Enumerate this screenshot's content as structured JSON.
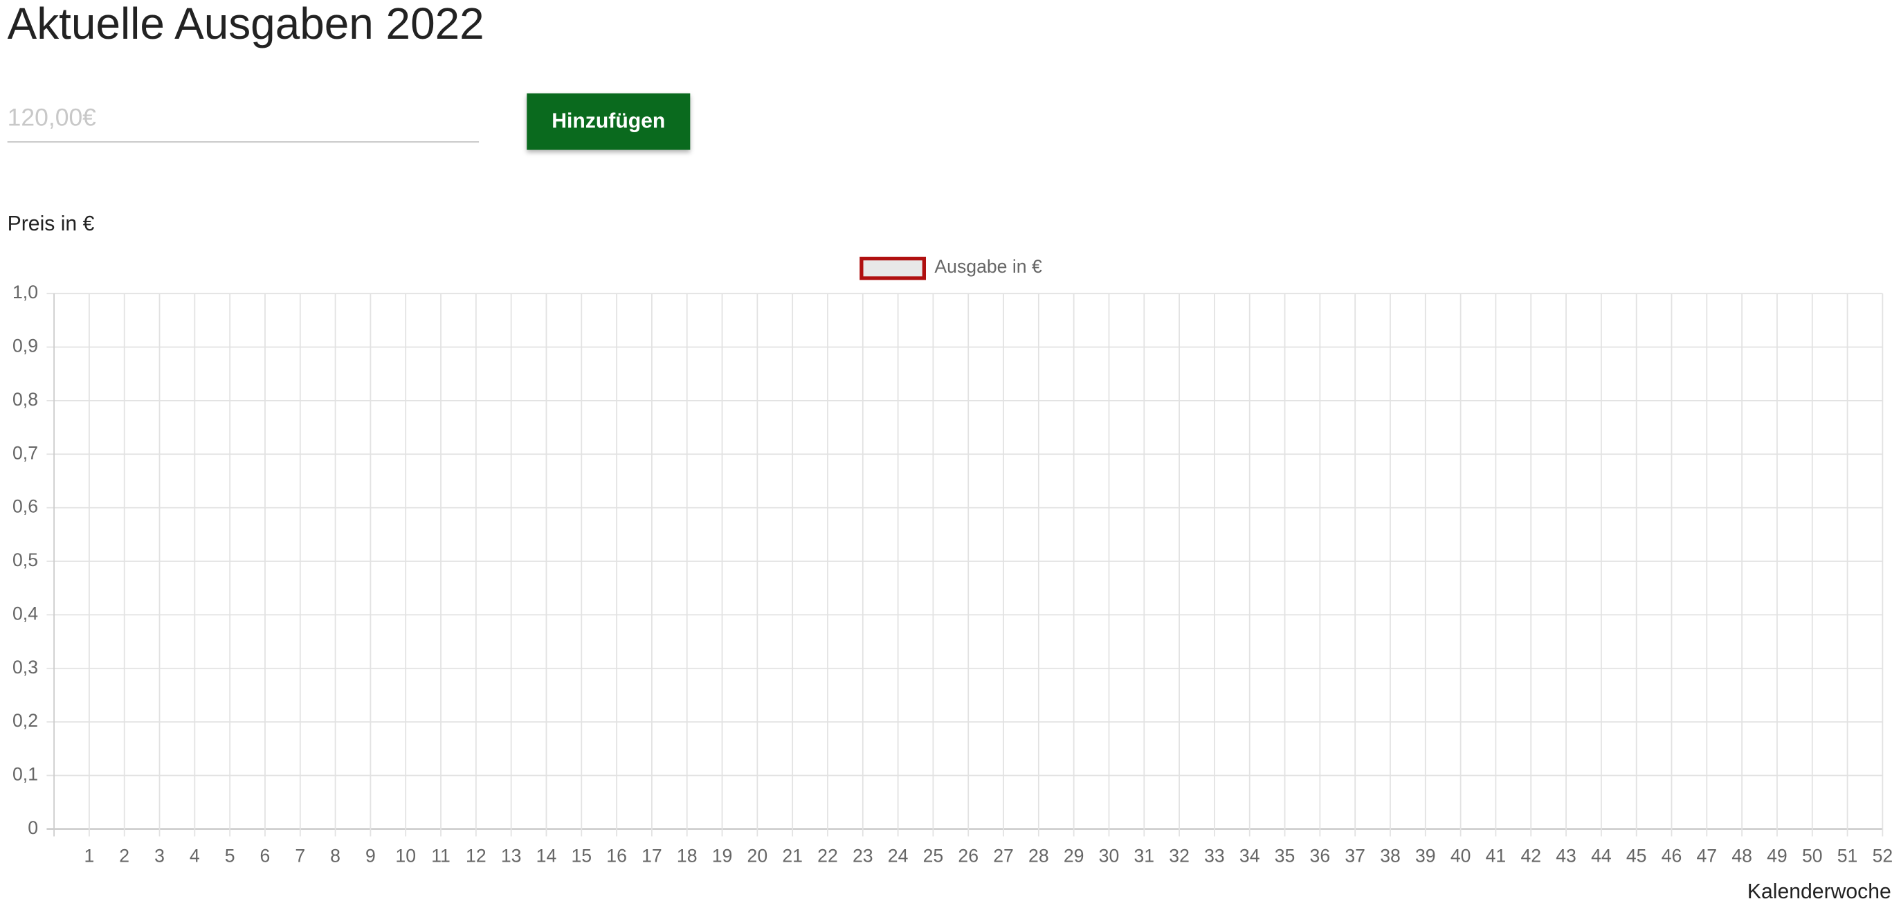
{
  "header": {
    "title": "Aktuelle Ausgaben 2022"
  },
  "form": {
    "placeholder": "120,00€",
    "button": "Hinzufügen"
  },
  "chart_data": {
    "type": "bar",
    "y_label": "Preis in €",
    "x_label": "Kalenderwoche",
    "categories": [
      "1",
      "2",
      "3",
      "4",
      "5",
      "6",
      "7",
      "8",
      "9",
      "10",
      "11",
      "12",
      "13",
      "14",
      "15",
      "16",
      "17",
      "18",
      "19",
      "20",
      "21",
      "22",
      "23",
      "24",
      "25",
      "26",
      "27",
      "28",
      "29",
      "30",
      "31",
      "32",
      "33",
      "34",
      "35",
      "36",
      "37",
      "38",
      "39",
      "40",
      "41",
      "42",
      "43",
      "44",
      "45",
      "46",
      "47",
      "48",
      "49",
      "50",
      "51",
      "52"
    ],
    "series": [
      {
        "name": "Ausgabe in €",
        "color": "#b01010",
        "values": [
          null,
          null,
          null,
          null,
          null,
          null,
          null,
          null,
          null,
          null,
          null,
          null,
          null,
          null,
          null,
          null,
          null,
          null,
          null,
          null,
          null,
          null,
          null,
          null,
          null,
          null,
          null,
          null,
          null,
          null,
          null,
          null,
          null,
          null,
          null,
          null,
          null,
          null,
          null,
          null,
          null,
          null,
          null,
          null,
          null,
          null,
          null,
          null,
          null,
          null,
          null,
          null
        ]
      }
    ],
    "ylim": [
      0,
      1
    ],
    "yticks": [
      0,
      {
        "value": 0.1,
        "label": "0,1"
      },
      {
        "value": 0.2,
        "label": "0,2"
      },
      {
        "value": 0.3,
        "label": "0,3"
      },
      {
        "value": 0.4,
        "label": "0,4"
      },
      {
        "value": 0.5,
        "label": "0,5"
      },
      {
        "value": 0.6,
        "label": "0,6"
      },
      {
        "value": 0.7,
        "label": "0,7"
      },
      {
        "value": 0.8,
        "label": "0,8"
      },
      {
        "value": 0.9,
        "label": "0,9"
      },
      {
        "value": 1,
        "label": "1,0"
      }
    ],
    "grid": true,
    "legend": "top"
  }
}
